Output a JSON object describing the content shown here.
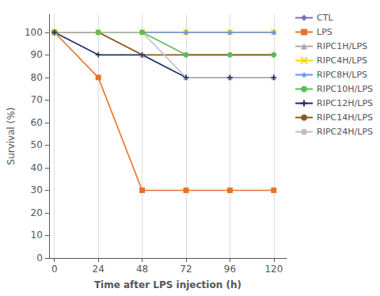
{
  "chart_data": {
    "type": "line",
    "x": [
      0,
      24,
      48,
      72,
      96,
      120
    ],
    "series": [
      {
        "name": "CTL",
        "color": "#7B6FBB",
        "marker": "diamond",
        "values": [
          100,
          100,
          100,
          100,
          100,
          100
        ]
      },
      {
        "name": "LPS",
        "color": "#E8722A",
        "marker": "square",
        "values": [
          100,
          80,
          30,
          30,
          30,
          30
        ]
      },
      {
        "name": "RIPC1H/LPS",
        "color": "#AAAAAA",
        "marker": "triangle",
        "values": [
          100,
          100,
          90,
          80,
          80,
          80
        ]
      },
      {
        "name": "RIPC4H/LPS",
        "color": "#FFD700",
        "marker": "x",
        "values": [
          100,
          100,
          100,
          100,
          100,
          100
        ]
      },
      {
        "name": "RIPC8H/LPS",
        "color": "#6495ED",
        "marker": "star",
        "values": [
          100,
          100,
          100,
          100,
          100,
          100
        ]
      },
      {
        "name": "RIPC10H/LPS",
        "color": "#5DBB5D",
        "marker": "circle",
        "values": [
          100,
          100,
          100,
          90,
          90,
          90
        ]
      },
      {
        "name": "RIPC12H/LPS",
        "color": "#1C2D6B",
        "marker": "plus",
        "values": [
          100,
          90,
          90,
          80,
          80,
          80
        ]
      },
      {
        "name": "RIPC14H/LPS",
        "color": "#8B5A1A",
        "marker": "none",
        "values": [
          100,
          100,
          90,
          90,
          90,
          90
        ]
      },
      {
        "name": "RIPC24H/LPS",
        "color": "#C0C0C0",
        "marker": "none",
        "values": [
          100,
          100,
          100,
          80,
          80,
          80
        ]
      }
    ],
    "xlabel": "Time after LPS injection (h)",
    "ylabel": "Survival (%)",
    "xlim": [
      -3,
      127
    ],
    "ylim": [
      0,
      108
    ],
    "xticks": [
      0,
      24,
      48,
      72,
      96,
      120
    ],
    "yticks": [
      0,
      10,
      20,
      30,
      40,
      50,
      60,
      70,
      80,
      90,
      100
    ],
    "grid": "x",
    "legend": "upper right"
  }
}
